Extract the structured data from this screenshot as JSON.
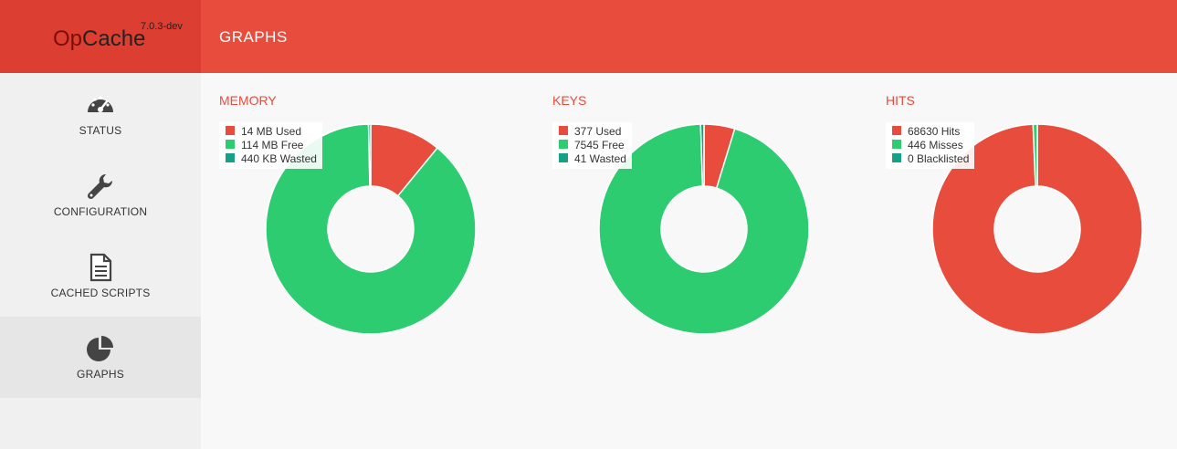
{
  "header": {
    "logo_part1": "Op",
    "logo_part2": "Cache",
    "version": "7.0.3-dev",
    "page_title": "GRAPHS"
  },
  "sidebar": {
    "items": [
      {
        "label": "STATUS",
        "icon": "dashboard-icon"
      },
      {
        "label": "CONFIGURATION",
        "icon": "wrench-icon"
      },
      {
        "label": "CACHED SCRIPTS",
        "icon": "document-icon"
      },
      {
        "label": "GRAPHS",
        "icon": "pie-chart-icon",
        "active": true
      }
    ]
  },
  "colors": {
    "accent": "#e74c3c",
    "used": "#e74c3c",
    "free": "#2ecc71",
    "wasted": "#16a085"
  },
  "chart_data": [
    {
      "type": "pie",
      "title": "MEMORY",
      "categories": [
        "14 MB Used",
        "114 MB Free",
        "440 KB Wasted"
      ],
      "values": [
        14,
        113.57,
        0.43
      ],
      "colors": [
        "#e74c3c",
        "#2ecc71",
        "#16a085"
      ]
    },
    {
      "type": "pie",
      "title": "KEYS",
      "categories": [
        "377 Used",
        "7545 Free",
        "41 Wasted"
      ],
      "values": [
        377,
        7545,
        41
      ],
      "colors": [
        "#e74c3c",
        "#2ecc71",
        "#16a085"
      ]
    },
    {
      "type": "pie",
      "title": "HITS",
      "categories": [
        "68630 Hits",
        "446 Misses",
        "0 Blacklisted"
      ],
      "values": [
        68630,
        446,
        0
      ],
      "colors": [
        "#e74c3c",
        "#2ecc71",
        "#16a085"
      ]
    }
  ]
}
